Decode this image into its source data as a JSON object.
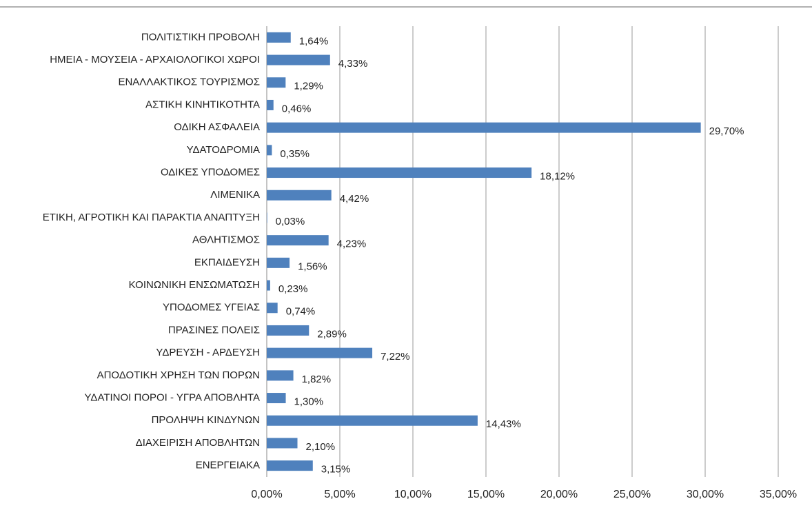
{
  "chart_data": {
    "type": "barh",
    "categories": [
      "ΠΟΛΙΤΙΣΤΙΚΗ ΠΡΟΒΟΛΗ",
      "ΗΜΕΙΑ - ΜΟΥΣΕΙΑ - ΑΡΧΑΙΟΛΟΓΙΚΟΙ ΧΩΡΟΙ",
      "ΕΝΑΛΛΑΚΤΙΚΟΣ ΤΟΥΡΙΣΜΟΣ",
      "ΑΣΤΙΚΗ ΚΙΝΗΤΙΚΟΤΗΤΑ",
      "ΟΔΙΚΗ ΑΣΦΑΛΕΙΑ",
      "ΥΔΑΤΟΔΡΟΜΙΑ",
      "ΟΔΙΚΕΣ ΥΠΟΔΟΜΕΣ",
      "ΛΙΜΕΝΙΚΑ",
      "ΕΤΙΚΗ, ΑΓΡΟΤΙΚΗ ΚΑΙ ΠΑΡΑΚΤΙΑ ΑΝΑΠΤΥΞΗ",
      "ΑΘΛΗΤΙΣΜΟΣ",
      "ΕΚΠΑΙΔΕΥΣΗ",
      "ΚΟΙΝΩΝΙΚΗ ΕΝΣΩΜΑΤΩΣΗ",
      "ΥΠΟΔΟΜΕΣ ΥΓΕΙΑΣ",
      "ΠΡΑΣΙΝΕΣ ΠΟΛΕΙΣ",
      "ΥΔΡΕΥΣΗ - ΑΡΔΕΥΣΗ",
      "ΑΠΟΔΟΤΙΚΗ ΧΡΗΣΗ ΤΩΝ ΠΟΡΩΝ",
      "ΥΔΑΤΙΝΟΙ ΠΟΡΟΙ - ΥΓΡΑ ΑΠΟΒΛΗΤΑ",
      "ΠΡΟΛΗΨΗ ΚΙΝΔΥΝΩΝ",
      "ΔΙΑΧΕΙΡΙΣΗ ΑΠΟΒΛΗΤΩΝ",
      "ΕΝΕΡΓΕΙΑΚΑ"
    ],
    "values": [
      1.64,
      4.33,
      1.29,
      0.46,
      29.7,
      0.35,
      18.12,
      4.42,
      0.03,
      4.23,
      1.56,
      0.23,
      0.74,
      2.89,
      7.22,
      1.82,
      1.3,
      14.43,
      2.1,
      3.15
    ],
    "value_labels": [
      "1,64%",
      "4,33%",
      "1,29%",
      "0,46%",
      "29,70%",
      "0,35%",
      "18,12%",
      "4,42%",
      "0,03%",
      "4,23%",
      "1,56%",
      "0,23%",
      "0,74%",
      "2,89%",
      "7,22%",
      "1,82%",
      "1,30%",
      "14,43%",
      "2,10%",
      "3,15%"
    ],
    "color": "#4f81bd",
    "xlim": [
      0,
      35
    ],
    "xticks": [
      {
        "value": 0,
        "label": "0,00%"
      },
      {
        "value": 5,
        "label": "5,00%"
      },
      {
        "value": 10,
        "label": "10,00%"
      },
      {
        "value": 15,
        "label": "15,00%"
      },
      {
        "value": 20,
        "label": "20,00%"
      },
      {
        "value": 25,
        "label": "25,00%"
      },
      {
        "value": 30,
        "label": "30,00%"
      },
      {
        "value": 35,
        "label": "35,00%"
      }
    ],
    "grid": true
  }
}
